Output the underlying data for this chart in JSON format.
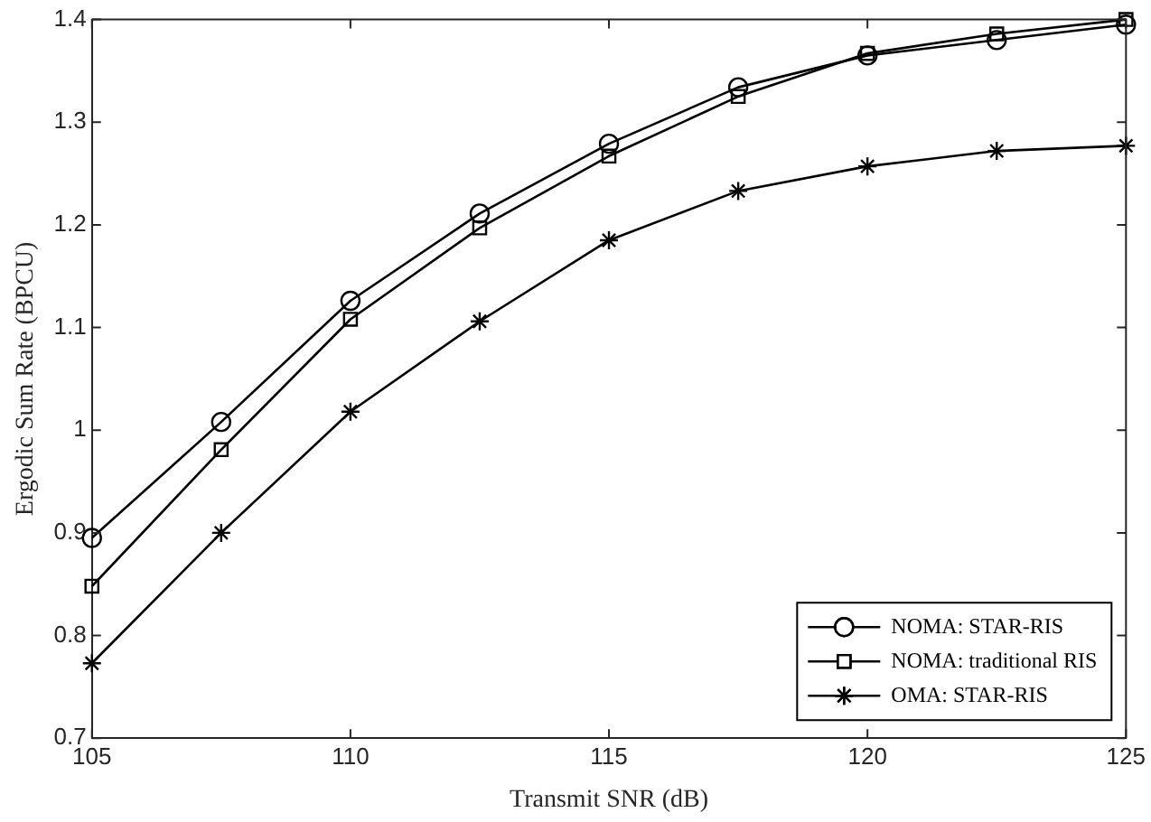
{
  "chart_data": {
    "type": "line",
    "xlabel": "Transmit SNR (dB)",
    "ylabel": "Ergodic Sum Rate (BPCU)",
    "x": [
      105,
      107.5,
      110,
      112.5,
      115,
      117.5,
      120,
      122.5,
      125
    ],
    "series": [
      {
        "name": "NOMA: STAR-RIS",
        "color": "#000000",
        "marker": "circle",
        "values": [
          0.895,
          1.008,
          1.126,
          1.211,
          1.279,
          1.334,
          1.365,
          1.38,
          1.395
        ]
      },
      {
        "name": "NOMA: traditional RIS",
        "color": "#000000",
        "marker": "square",
        "values": [
          0.848,
          0.981,
          1.108,
          1.197,
          1.267,
          1.325,
          1.367,
          1.386,
          1.4
        ]
      },
      {
        "name": "OMA: STAR-RIS",
        "color": "#000000",
        "marker": "cross",
        "values": [
          0.773,
          0.9,
          1.018,
          1.106,
          1.185,
          1.233,
          1.257,
          1.272,
          1.277
        ]
      }
    ],
    "xlim": [
      105,
      125
    ],
    "xticks": [
      105,
      110,
      115,
      120,
      125
    ],
    "ylim": [
      0.7,
      1.4
    ],
    "yticks": [
      0.7,
      0.8,
      0.9,
      1,
      1.1,
      1.2,
      1.3,
      1.4
    ],
    "grid": false,
    "legend": "bottom right",
    "line_style": "solid"
  }
}
